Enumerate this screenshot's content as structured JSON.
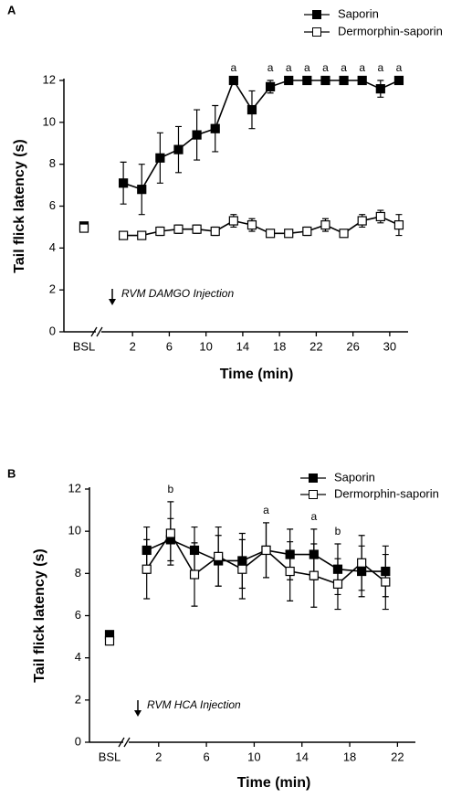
{
  "chart_data": [
    {
      "type": "line",
      "panel_label": "A",
      "ylabel": "Tail flick latency (s)",
      "xlabel": "Time (min)",
      "annotation": "RVM DAMGO Injection",
      "bsl_label": "BSL",
      "x": [
        1,
        3,
        5,
        7,
        9,
        11,
        13,
        15,
        17,
        19,
        21,
        23,
        25,
        27,
        29,
        31
      ],
      "xlim": [
        -1,
        32
      ],
      "xticks": [
        2,
        6,
        10,
        14,
        18,
        22,
        26,
        30
      ],
      "ylim": [
        0,
        12
      ],
      "yticks": [
        0,
        2,
        4,
        6,
        8,
        10,
        12
      ],
      "letters": [
        null,
        null,
        null,
        null,
        null,
        null,
        "a",
        null,
        "a",
        "a",
        "a",
        "a",
        "a",
        "a",
        "a",
        "a"
      ],
      "series": [
        {
          "name": "Saporin",
          "color": "#000000",
          "bsl_value": 5.05,
          "values": [
            7.1,
            6.8,
            8.3,
            8.7,
            9.4,
            9.7,
            12,
            10.6,
            11.7,
            12,
            12,
            12,
            12,
            12,
            11.6,
            12
          ],
          "errors": [
            1.0,
            1.2,
            1.2,
            1.1,
            1.2,
            1.1,
            0,
            0.9,
            0.3,
            0,
            0,
            0,
            0,
            0,
            0.4,
            0
          ]
        },
        {
          "name": "Dermorphin-saporin",
          "color": "#ffffff",
          "bsl_value": 4.95,
          "values": [
            4.6,
            4.6,
            4.8,
            4.9,
            4.9,
            4.8,
            5.3,
            5.1,
            4.7,
            4.7,
            4.8,
            5.1,
            4.7,
            5.3,
            5.5,
            5.1
          ],
          "errors": [
            0.1,
            0.1,
            0.2,
            0.2,
            0.2,
            0.2,
            0.3,
            0.3,
            0.1,
            0.1,
            0.2,
            0.3,
            0.1,
            0.3,
            0.3,
            0.5
          ]
        }
      ]
    },
    {
      "type": "line",
      "panel_label": "B",
      "ylabel": "Tail flick latency (s)",
      "xlabel": "Time (min)",
      "annotation": "RVM HCA Injection",
      "bsl_label": "BSL",
      "x": [
        1,
        3,
        5,
        7,
        9,
        11,
        13,
        15,
        17,
        19,
        21
      ],
      "xlim": [
        -0.2,
        23.5
      ],
      "xticks": [
        2,
        6,
        10,
        14,
        18,
        22
      ],
      "ylim": [
        0,
        12
      ],
      "yticks": [
        0,
        2,
        4,
        6,
        8,
        10,
        12
      ],
      "letters": [
        null,
        "b",
        null,
        null,
        null,
        "a",
        null,
        "a",
        "b",
        null,
        null
      ],
      "series": [
        {
          "name": "Saporin",
          "color": "#000000",
          "bsl_value": 5.1,
          "values": [
            9.1,
            9.6,
            9.1,
            8.6,
            8.6,
            9.1,
            8.9,
            8.9,
            8.2,
            8.1,
            8.1
          ],
          "errors": [
            1.1,
            1.0,
            1.1,
            1.2,
            1.3,
            1.3,
            1.2,
            1.2,
            1.2,
            1.2,
            1.2
          ]
        },
        {
          "name": "Dermorphin-saporin",
          "color": "#ffffff",
          "bsl_value": 4.8,
          "values": [
            8.2,
            9.9,
            7.95,
            8.8,
            8.2,
            9.1,
            8.1,
            7.9,
            7.5,
            8.5,
            7.6
          ],
          "errors": [
            1.4,
            1.5,
            1.5,
            1.4,
            1.4,
            1.3,
            1.4,
            1.5,
            1.2,
            1.3,
            1.3
          ]
        }
      ]
    }
  ]
}
